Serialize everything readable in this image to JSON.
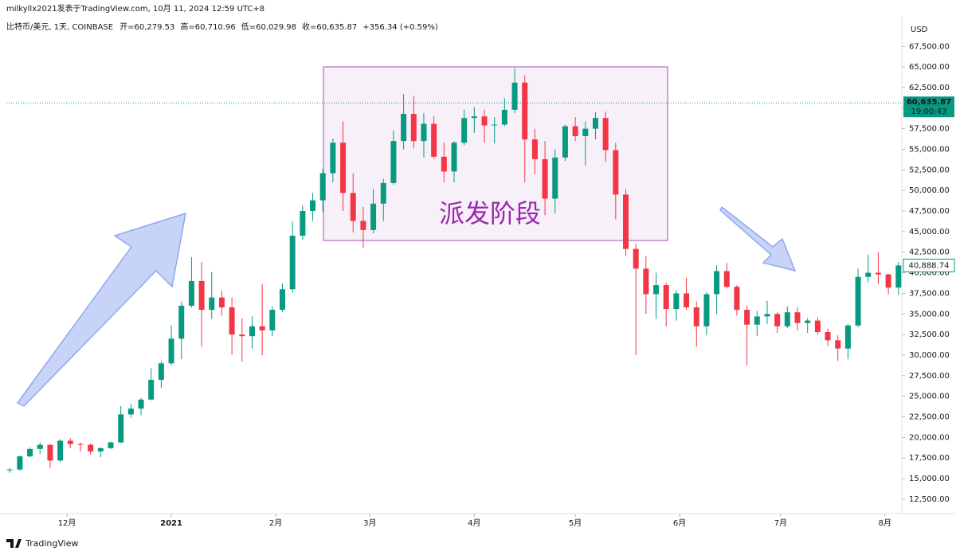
{
  "header": {
    "author_line": "milkyllx2021发表于TradingView.com, 10月 11, 2024 12:59 UTC+8",
    "symbol": "比特币/美元, 1天, COINBASE",
    "ohlc": [
      {
        "key": "开=",
        "value": "60,279.53"
      },
      {
        "key": "高=",
        "value": "60,710.96"
      },
      {
        "key": "低=",
        "value": "60,029.98"
      },
      {
        "key": "收=",
        "value": "60,635.87"
      }
    ],
    "change": "+356.34 (+0.59%)",
    "currency": "USD"
  },
  "footer": {
    "brand": "TradingView"
  },
  "chart_data": {
    "type": "candlestick",
    "up_color": "#089981",
    "down_color": "#f23645",
    "grid": false,
    "xlim": [
      -1,
      265
    ],
    "ylim": [
      10750,
      71200
    ],
    "xticks": [
      {
        "value": 17,
        "label": "12月"
      },
      {
        "value": 48,
        "label": "2021"
      },
      {
        "value": 79,
        "label": "2月"
      },
      {
        "value": 107,
        "label": "3月"
      },
      {
        "value": 138,
        "label": "4月"
      },
      {
        "value": 168,
        "label": "5月"
      },
      {
        "value": 199,
        "label": "6月"
      },
      {
        "value": 229,
        "label": "7月"
      },
      {
        "value": 260,
        "label": "8月"
      }
    ],
    "yticks": [
      {
        "value": 12500,
        "label": "12,500.00"
      },
      {
        "value": 15000,
        "label": "15,000.00"
      },
      {
        "value": 17500,
        "label": "17,500.00"
      },
      {
        "value": 20000,
        "label": "20,000.00"
      },
      {
        "value": 22500,
        "label": "22,500.00"
      },
      {
        "value": 25000,
        "label": "25,000.00"
      },
      {
        "value": 27500,
        "label": "27,500.00"
      },
      {
        "value": 30000,
        "label": "30,000.00"
      },
      {
        "value": 32500,
        "label": "32,500.00"
      },
      {
        "value": 35000,
        "label": "35,000.00"
      },
      {
        "value": 37500,
        "label": "37,500.00"
      },
      {
        "value": 40000,
        "label": "40,000.00"
      },
      {
        "value": 42500,
        "label": "42,500.00"
      },
      {
        "value": 45000,
        "label": "45,000.00"
      },
      {
        "value": 47500,
        "label": "47,500.00"
      },
      {
        "value": 50000,
        "label": "50,000.00"
      },
      {
        "value": 52500,
        "label": "52,500.00"
      },
      {
        "value": 55000,
        "label": "55,000.00"
      },
      {
        "value": 57500,
        "label": "57,500.00"
      },
      {
        "value": 60000,
        "label": "60,000.00"
      },
      {
        "value": 62500,
        "label": "62,500.00"
      },
      {
        "value": 65000,
        "label": "65,000.00"
      },
      {
        "value": 67500,
        "label": "67,500.00"
      }
    ],
    "price_line": {
      "value": 60635.87,
      "label": "60,635.87",
      "countdown": "19:00:43"
    },
    "last_value": {
      "value": 40888.74,
      "label": "40,888.74"
    },
    "annotation": "派发阶段",
    "x": [
      0,
      3,
      6,
      9,
      12,
      15,
      18,
      21,
      24,
      27,
      30,
      33,
      36,
      39,
      42,
      45,
      48,
      51,
      54,
      57,
      60,
      63,
      66,
      69,
      72,
      75,
      78,
      81,
      84,
      87,
      90,
      93,
      96,
      99,
      102,
      105,
      108,
      111,
      114,
      117,
      120,
      123,
      126,
      129,
      132,
      135,
      138,
      141,
      144,
      147,
      150,
      153,
      156,
      159,
      162,
      165,
      168,
      171,
      174,
      177,
      180,
      183,
      186,
      189,
      192,
      195,
      198,
      201,
      204,
      207,
      210,
      213,
      216,
      219,
      222,
      225,
      228,
      231,
      234,
      237,
      240,
      243,
      246,
      249,
      252,
      255,
      258,
      261,
      264
    ],
    "ohlc": [
      [
        16000,
        16300,
        15700,
        16100
      ],
      [
        16100,
        17800,
        16000,
        17700
      ],
      [
        17700,
        18800,
        17600,
        18600
      ],
      [
        18600,
        19400,
        18000,
        19100
      ],
      [
        19100,
        19200,
        16300,
        17200
      ],
      [
        17200,
        19800,
        17000,
        19600
      ],
      [
        19600,
        19900,
        18700,
        19200
      ],
      [
        19200,
        19400,
        18300,
        19100
      ],
      [
        19100,
        19300,
        17900,
        18300
      ],
      [
        18300,
        18800,
        17600,
        18700
      ],
      [
        18700,
        19500,
        18600,
        19400
      ],
      [
        19400,
        23800,
        19300,
        22800
      ],
      [
        22800,
        24100,
        22400,
        23500
      ],
      [
        23500,
        24800,
        22700,
        24600
      ],
      [
        24600,
        28400,
        24500,
        27000
      ],
      [
        27000,
        29300,
        26000,
        29000
      ],
      [
        29000,
        33600,
        28800,
        32000
      ],
      [
        32000,
        36500,
        29500,
        36000
      ],
      [
        36000,
        41900,
        35800,
        39000
      ],
      [
        39000,
        41300,
        31000,
        35500
      ],
      [
        35500,
        40100,
        34400,
        37000
      ],
      [
        37000,
        37800,
        34800,
        35800
      ],
      [
        35800,
        37000,
        30000,
        32500
      ],
      [
        32500,
        34500,
        29200,
        32300
      ],
      [
        32300,
        34700,
        30800,
        33500
      ],
      [
        33500,
        38600,
        30000,
        33000
      ],
      [
        33000,
        35900,
        32300,
        35500
      ],
      [
        35500,
        38700,
        35200,
        38000
      ],
      [
        38000,
        46200,
        37600,
        44500
      ],
      [
        44500,
        48200,
        44000,
        47500
      ],
      [
        47500,
        49700,
        46300,
        48800
      ],
      [
        48800,
        52600,
        47400,
        52100
      ],
      [
        52100,
        56300,
        51000,
        55800
      ],
      [
        55800,
        58400,
        47500,
        49700
      ],
      [
        49700,
        52100,
        44900,
        46300
      ],
      [
        46300,
        48000,
        43000,
        45200
      ],
      [
        45200,
        50200,
        44800,
        48400
      ],
      [
        48400,
        51400,
        46300,
        50900
      ],
      [
        50900,
        57300,
        50700,
        56000
      ],
      [
        56000,
        61700,
        55000,
        59300
      ],
      [
        59300,
        61500,
        55100,
        56000
      ],
      [
        56000,
        59400,
        54000,
        58100
      ],
      [
        58100,
        59000,
        53800,
        54100
      ],
      [
        54100,
        55800,
        51000,
        52300
      ],
      [
        52300,
        56000,
        51000,
        55800
      ],
      [
        55800,
        59800,
        55500,
        58800
      ],
      [
        58800,
        60100,
        57000,
        59000
      ],
      [
        59000,
        59800,
        55800,
        57900
      ],
      [
        57900,
        58900,
        55700,
        58000
      ],
      [
        58000,
        61200,
        57800,
        59800
      ],
      [
        59800,
        64800,
        59400,
        63100
      ],
      [
        63100,
        64000,
        51000,
        56200
      ],
      [
        56200,
        57500,
        52000,
        53800
      ],
      [
        53800,
        56000,
        47000,
        49000
      ],
      [
        49000,
        55000,
        47200,
        54000
      ],
      [
        54000,
        58000,
        53600,
        57800
      ],
      [
        57800,
        58900,
        56000,
        56600
      ],
      [
        56600,
        58400,
        53000,
        57500
      ],
      [
        57500,
        59500,
        56200,
        58800
      ],
      [
        58800,
        59600,
        53500,
        54900
      ],
      [
        54900,
        55800,
        46500,
        49500
      ],
      [
        49500,
        50200,
        42000,
        42900
      ],
      [
        42900,
        43500,
        30000,
        40500
      ],
      [
        40500,
        42000,
        35000,
        37400
      ],
      [
        37400,
        40000,
        34400,
        38500
      ],
      [
        38500,
        38800,
        33500,
        35600
      ],
      [
        35600,
        37900,
        34200,
        37500
      ],
      [
        37500,
        39400,
        35500,
        35800
      ],
      [
        35800,
        36500,
        31000,
        33500
      ],
      [
        33500,
        37600,
        32400,
        37400
      ],
      [
        37400,
        40900,
        35000,
        40200
      ],
      [
        40200,
        41200,
        38100,
        38300
      ],
      [
        38300,
        38500,
        34800,
        35500
      ],
      [
        35500,
        36000,
        28800,
        33700
      ],
      [
        33700,
        35400,
        32300,
        34700
      ],
      [
        34700,
        36600,
        33800,
        35000
      ],
      [
        35000,
        35200,
        32700,
        33500
      ],
      [
        33500,
        35900,
        33300,
        35200
      ],
      [
        35200,
        35800,
        33000,
        33900
      ],
      [
        33900,
        34500,
        32700,
        34200
      ],
      [
        34200,
        34600,
        32500,
        32800
      ],
      [
        32800,
        33200,
        31100,
        31800
      ],
      [
        31800,
        32400,
        29300,
        30800
      ],
      [
        30800,
        33800,
        29500,
        33600
      ],
      [
        33600,
        40500,
        33400,
        39500
      ],
      [
        39500,
        42200,
        38800,
        40000
      ],
      [
        40000,
        42500,
        38600,
        39800
      ],
      [
        39800,
        39900,
        37400,
        38200
      ],
      [
        38200,
        41300,
        37300,
        40888.74
      ]
    ]
  }
}
